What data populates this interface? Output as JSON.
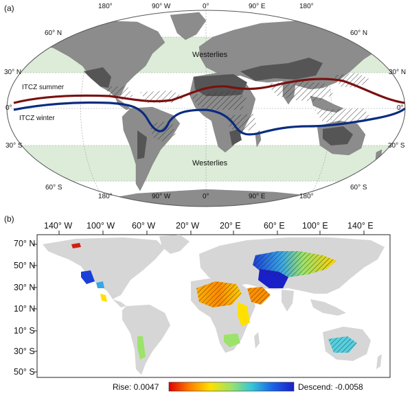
{
  "panel_a": {
    "label": "(a)",
    "lon_labels_top": [
      "180°",
      "90° W",
      "0°",
      "90° E",
      "180°"
    ],
    "lon_labels_bottom": [
      "180°",
      "90° W",
      "0°",
      "90° E",
      "180°"
    ],
    "lat_labels_left": [
      "60° N",
      "30° N",
      "0°",
      "30° S",
      "60° S"
    ],
    "lat_labels_right": [
      "60° N",
      "30° N",
      "0°",
      "30° S",
      "60° S"
    ],
    "westerlies_north": "Westerlies",
    "westerlies_south": "Westerlies",
    "itcz_summer_label": "ITCZ summer",
    "itcz_winter_label": "ITCZ winter",
    "colors": {
      "ocean": "#ffffff",
      "land": "#8c8c8c",
      "dryland": "#555555",
      "westerlies_band": "#dcecd8",
      "itcz_summer": "#7a1010",
      "itcz_winter": "#0a2c80"
    }
  },
  "panel_b": {
    "label": "(b)",
    "lon_labels": [
      "140° W",
      "100° W",
      "60° W",
      "20° W",
      "20° E",
      "60° E",
      "100° E",
      "140° E"
    ],
    "lat_labels": [
      "70° N",
      "50° N",
      "30° N",
      "10° N",
      "10° S",
      "30° S",
      "50° S"
    ],
    "legend_rise": "Rise: 0.0047",
    "legend_descend": "Descend: -0.0058",
    "colors": {
      "land": "#d6d6d6",
      "colorbar": [
        "#e00000",
        "#ff7a00",
        "#ffe000",
        "#9be36a",
        "#37c7d5",
        "#1b62e8",
        "#1a20c8"
      ]
    }
  }
}
